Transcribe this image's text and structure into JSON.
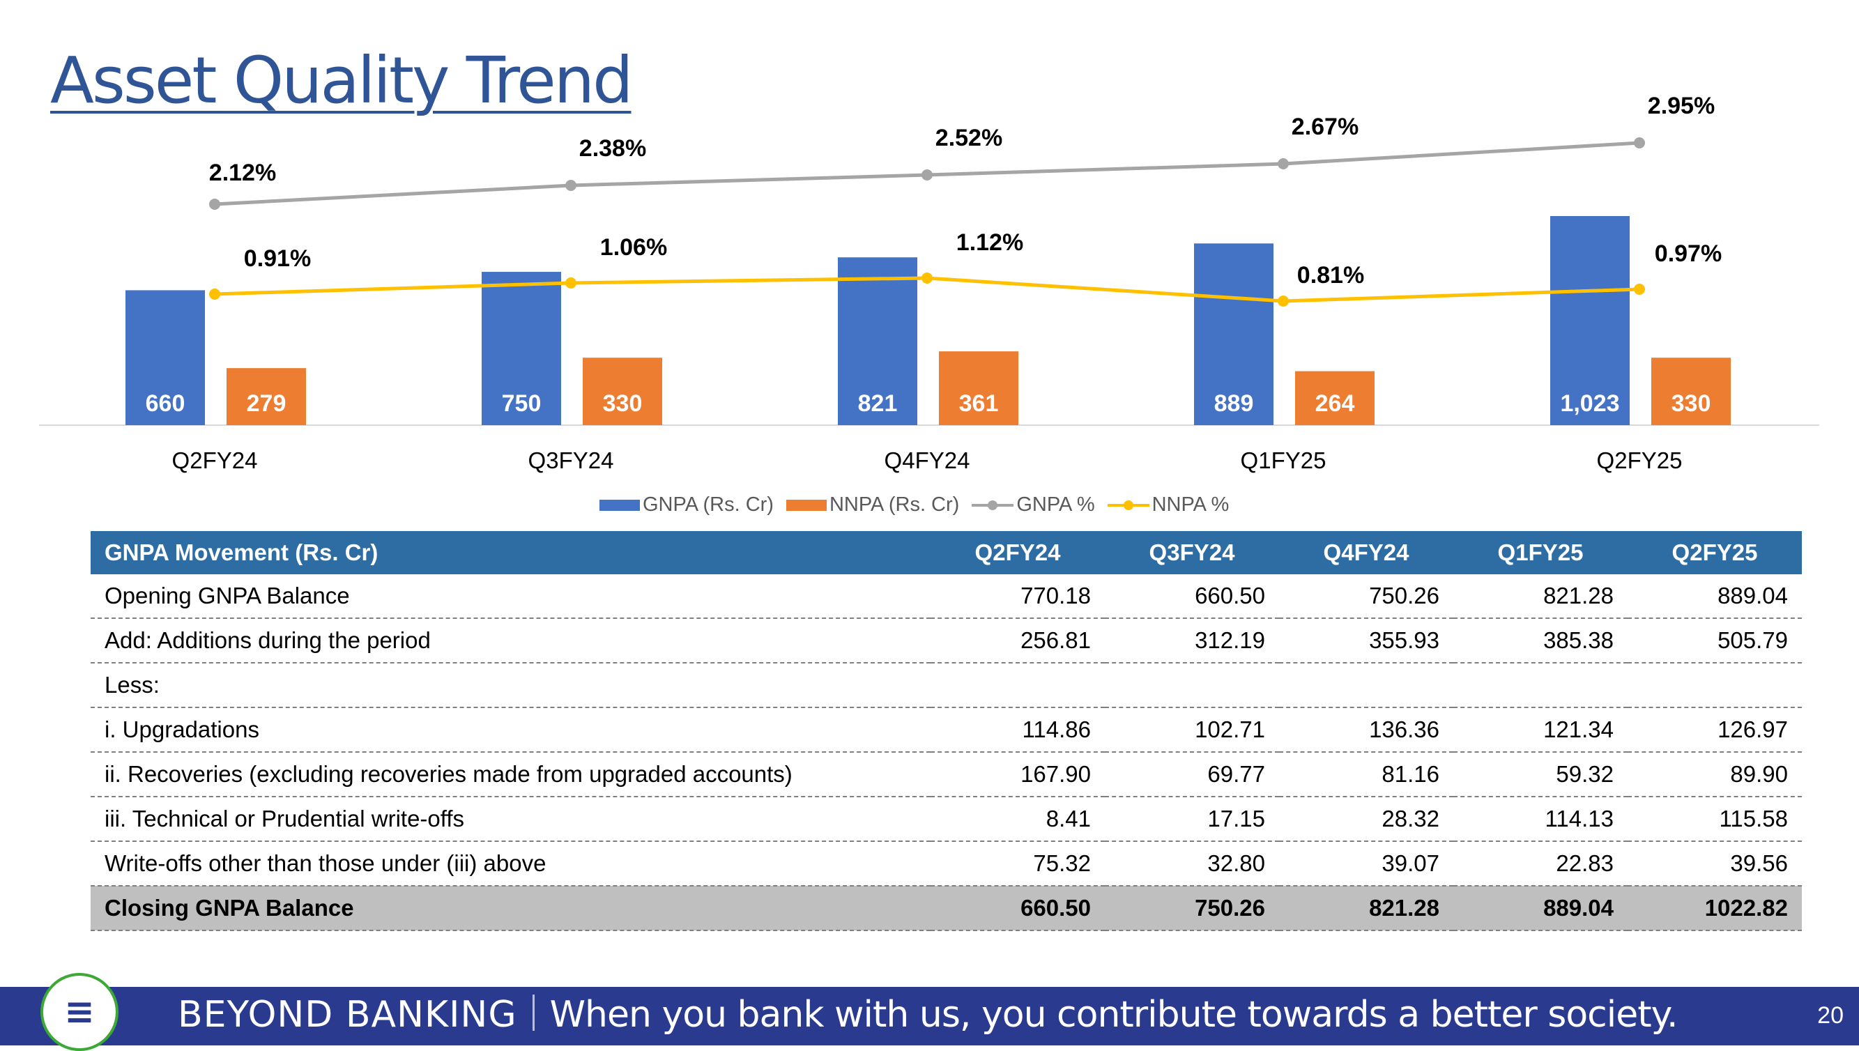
{
  "page": {
    "title": "Asset Quality Trend",
    "page_number": "20"
  },
  "chart_data": {
    "type": "bar",
    "categories": [
      "Q2FY24",
      "Q3FY24",
      "Q4FY24",
      "Q1FY25",
      "Q2FY25"
    ],
    "series": [
      {
        "name": "GNPA (Rs. Cr)",
        "kind": "bar",
        "values": [
          660,
          750,
          821,
          889,
          1023
        ],
        "labels": [
          "660",
          "750",
          "821",
          "889",
          "1,023"
        ],
        "color": "#4472c4"
      },
      {
        "name": "NNPA (Rs. Cr)",
        "kind": "bar",
        "values": [
          279,
          330,
          361,
          264,
          330
        ],
        "labels": [
          "279",
          "330",
          "361",
          "264",
          "330"
        ],
        "color": "#ed7d31"
      },
      {
        "name": "GNPA %",
        "kind": "line",
        "values": [
          2.12,
          2.38,
          2.52,
          2.67,
          2.95
        ],
        "labels": [
          "2.12%",
          "2.38%",
          "2.52%",
          "2.67%",
          "2.95%"
        ],
        "color": "#a5a5a5"
      },
      {
        "name": "NNPA %",
        "kind": "line",
        "values": [
          0.91,
          1.06,
          1.12,
          0.81,
          0.97
        ],
        "labels": [
          "0.91%",
          "1.06%",
          "1.12%",
          "0.81%",
          "0.97%"
        ],
        "color": "#ffc000"
      }
    ],
    "legend_position": "bottom",
    "grid": false
  },
  "table": {
    "header": [
      "GNPA Movement (Rs. Cr)",
      "Q2FY24",
      "Q3FY24",
      "Q4FY24",
      "Q1FY25",
      "Q2FY25"
    ],
    "rows": [
      {
        "label": "Opening GNPA Balance",
        "values": [
          "770.18",
          "660.50",
          "750.26",
          "821.28",
          "889.04"
        ]
      },
      {
        "label": "Add: Additions during the period",
        "values": [
          "256.81",
          "312.19",
          "355.93",
          "385.38",
          "505.79"
        ]
      },
      {
        "label": "Less:",
        "values": [
          "",
          "",
          "",
          "",
          ""
        ]
      },
      {
        "label": "i. Upgradations",
        "values": [
          "114.86",
          "102.71",
          "136.36",
          "121.34",
          "126.97"
        ]
      },
      {
        "label": "ii. Recoveries (excluding recoveries made from upgraded accounts)",
        "values": [
          "167.90",
          "69.77",
          "81.16",
          "59.32",
          "89.90"
        ]
      },
      {
        "label": "iii. Technical or Prudential write-offs",
        "values": [
          "8.41",
          "17.15",
          "28.32",
          "114.13",
          "115.58"
        ]
      },
      {
        "label": "Write-offs other than those under (iii) above",
        "values": [
          "75.32",
          "32.80",
          "39.07",
          "22.83",
          "39.56"
        ]
      },
      {
        "label": "Closing GNPA Balance",
        "values": [
          "660.50",
          "750.26",
          "821.28",
          "889.04",
          "1022.82"
        ]
      }
    ]
  },
  "footer": {
    "brand": "BEYOND BANKING",
    "tagline": "When you bank with us, you contribute towards a better society.",
    "logo_icon": "bank-logo-icon"
  }
}
